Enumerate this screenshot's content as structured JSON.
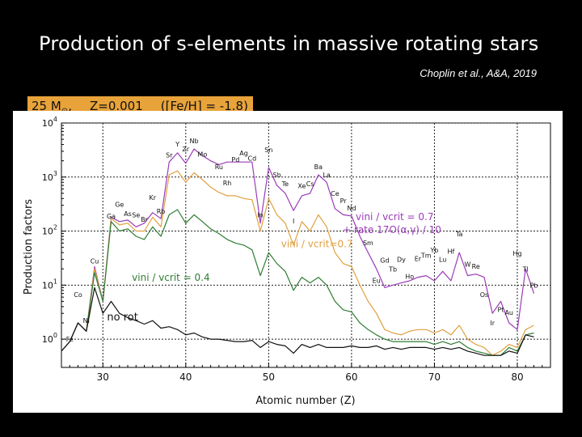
{
  "slide": {
    "title": "Production of s-elements in massive rotating stars",
    "citation": "Choplin et al., A&A, 2019",
    "badge": {
      "mass_prefix": "25 M",
      "sun_symbol": "⊙",
      "mass_suffix": ",",
      "metallicity": "Z=0.001",
      "fe_h": "([Fe/H] = -1.8)"
    }
  },
  "colors": {
    "purple": "#9b3cb8",
    "orange": "#e0a040",
    "green": "#2e7d32",
    "black": "#111111",
    "badge": "#e8a33a"
  },
  "chart_data": {
    "type": "line",
    "xlabel": "Atomic number (Z)",
    "ylabel": "Production factors",
    "xlim": [
      25,
      84
    ],
    "ylim": [
      0.3,
      10000
    ],
    "yscale": "log",
    "grid": true,
    "x_ticks": [
      30,
      40,
      50,
      60,
      70,
      80
    ],
    "y_ticks": [
      {
        "value": 1,
        "base": "10",
        "exp": "0"
      },
      {
        "value": 10,
        "base": "10",
        "exp": "1"
      },
      {
        "value": 100,
        "base": "10",
        "exp": "2"
      },
      {
        "value": 1000,
        "base": "10",
        "exp": "3"
      },
      {
        "value": 10000,
        "base": "10",
        "exp": "4"
      }
    ],
    "x": [
      25,
      26,
      27,
      28,
      29,
      30,
      31,
      32,
      33,
      34,
      35,
      36,
      37,
      38,
      39,
      40,
      41,
      42,
      43,
      44,
      45,
      46,
      47,
      48,
      49,
      50,
      51,
      52,
      53,
      54,
      55,
      56,
      57,
      58,
      59,
      60,
      61,
      62,
      63,
      64,
      65,
      66,
      67,
      68,
      69,
      70,
      71,
      72,
      73,
      74,
      75,
      76,
      77,
      78,
      79,
      80,
      81,
      82
    ],
    "series": [
      {
        "name": "vini / vcrit = 0.7 + rate 17O(α,γ) / 10",
        "color": "#9b3cb8",
        "values": [
          0.6,
          0.9,
          2.0,
          1.4,
          22,
          5,
          180,
          150,
          160,
          120,
          140,
          220,
          170,
          1900,
          2800,
          1800,
          3300,
          2500,
          2000,
          1700,
          1900,
          1900,
          1900,
          1900,
          140,
          1500,
          700,
          500,
          240,
          450,
          500,
          1100,
          800,
          260,
          200,
          190,
          80,
          40,
          20,
          9,
          10,
          11,
          12,
          14,
          15,
          12,
          18,
          12,
          40,
          15,
          16,
          14,
          3,
          5,
          2,
          1.5,
          20,
          7
        ]
      },
      {
        "name": "vini / vcrit=0.7",
        "color": "#e0a040",
        "values": [
          0.6,
          0.9,
          2.0,
          1.4,
          20,
          5,
          170,
          130,
          140,
          100,
          100,
          180,
          120,
          1100,
          1300,
          800,
          1200,
          900,
          650,
          520,
          450,
          450,
          400,
          380,
          100,
          400,
          200,
          140,
          55,
          150,
          100,
          200,
          120,
          40,
          25,
          22,
          10,
          5,
          3,
          1.5,
          1.3,
          1.2,
          1.4,
          1.5,
          1.5,
          1.3,
          1.5,
          1.2,
          1.8,
          1.0,
          0.8,
          0.7,
          0.5,
          0.6,
          0.8,
          0.7,
          1.5,
          1.8
        ]
      },
      {
        "name": "vini / vcrit = 0.4",
        "color": "#2e7d32",
        "values": [
          0.6,
          0.9,
          2.0,
          1.4,
          17,
          5,
          150,
          100,
          110,
          80,
          70,
          120,
          80,
          200,
          250,
          140,
          200,
          150,
          110,
          90,
          70,
          60,
          55,
          45,
          15,
          40,
          25,
          18,
          8,
          14,
          11,
          14,
          10,
          5,
          3.5,
          3.2,
          2.0,
          1.5,
          1.2,
          1.0,
          0.9,
          0.9,
          0.9,
          0.9,
          0.9,
          0.8,
          0.9,
          0.8,
          0.9,
          0.7,
          0.6,
          0.55,
          0.5,
          0.5,
          0.7,
          0.6,
          1.2,
          1.3
        ]
      },
      {
        "name": "no rot",
        "color": "#111111",
        "values": [
          0.6,
          0.9,
          2.0,
          1.4,
          9,
          3,
          5,
          3,
          2.5,
          2.2,
          1.9,
          2.2,
          1.6,
          1.7,
          1.5,
          1.2,
          1.3,
          1.1,
          1.0,
          1.0,
          0.95,
          0.9,
          0.9,
          0.95,
          0.7,
          0.9,
          0.8,
          0.75,
          0.55,
          0.8,
          0.7,
          0.8,
          0.7,
          0.7,
          0.7,
          0.75,
          0.7,
          0.7,
          0.75,
          0.65,
          0.7,
          0.65,
          0.7,
          0.7,
          0.7,
          0.65,
          0.7,
          0.65,
          0.7,
          0.6,
          0.55,
          0.5,
          0.5,
          0.5,
          0.6,
          0.55,
          1.2,
          1.1
        ]
      }
    ],
    "series_labels": [
      {
        "line1": "vini / vcrit = 0.7",
        "line2": "+ rate 17O(α,γ) / 10",
        "color": "#9b3cb8",
        "x": 60.5,
        "y": 160
      },
      {
        "line1": "vini / vcrit=0.7",
        "line2": "",
        "color": "#e0a040",
        "x": 51.5,
        "y": 50
      },
      {
        "line1": "vini / vcrit = 0.4",
        "line2": "",
        "color": "#2e7d32",
        "x": 33.5,
        "y": 12
      },
      {
        "line1": "no rot",
        "line2": "",
        "color": "#111111",
        "x": 30.5,
        "y": 2.2
      }
    ],
    "element_labels": [
      {
        "t": "Fe",
        "x": 26,
        "y": 0.9
      },
      {
        "t": "Co",
        "x": 27,
        "y": 6
      },
      {
        "t": "Ni",
        "x": 28,
        "y": 2.0
      },
      {
        "t": "Cu",
        "x": 29,
        "y": 25
      },
      {
        "t": "Ge",
        "x": 32,
        "y": 280
      },
      {
        "t": "Ga",
        "x": 31,
        "y": 170
      },
      {
        "t": "As",
        "x": 33,
        "y": 190
      },
      {
        "t": "Se",
        "x": 34,
        "y": 180
      },
      {
        "t": "Br",
        "x": 35,
        "y": 150
      },
      {
        "t": "Kr",
        "x": 36,
        "y": 380
      },
      {
        "t": "Rb",
        "x": 37,
        "y": 210
      },
      {
        "t": "Sr",
        "x": 38,
        "y": 2300
      },
      {
        "t": "Y",
        "x": 39,
        "y": 3700
      },
      {
        "t": "Zr",
        "x": 40,
        "y": 3000
      },
      {
        "t": "Nb",
        "x": 41,
        "y": 4200
      },
      {
        "t": "Mo",
        "x": 42,
        "y": 2400
      },
      {
        "t": "Ru",
        "x": 44,
        "y": 1400
      },
      {
        "t": "Rh",
        "x": 45,
        "y": 700
      },
      {
        "t": "Pd",
        "x": 46,
        "y": 1900
      },
      {
        "t": "Ag",
        "x": 47,
        "y": 2500
      },
      {
        "t": "Cd",
        "x": 48,
        "y": 2000
      },
      {
        "t": "In",
        "x": 49,
        "y": 180
      },
      {
        "t": "Sn",
        "x": 50,
        "y": 2900
      },
      {
        "t": "Sb",
        "x": 51,
        "y": 1000
      },
      {
        "t": "Te",
        "x": 52,
        "y": 680
      },
      {
        "t": "I",
        "x": 53,
        "y": 140
      },
      {
        "t": "Xe",
        "x": 54,
        "y": 620
      },
      {
        "t": "Cs",
        "x": 55,
        "y": 680
      },
      {
        "t": "Ba",
        "x": 56,
        "y": 1400
      },
      {
        "t": "La",
        "x": 57,
        "y": 1000
      },
      {
        "t": "Ce",
        "x": 58,
        "y": 450
      },
      {
        "t": "Pr",
        "x": 59,
        "y": 330
      },
      {
        "t": "Nd",
        "x": 60,
        "y": 240
      },
      {
        "t": "Sm",
        "x": 62,
        "y": 55
      },
      {
        "t": "Eu",
        "x": 63,
        "y": 11
      },
      {
        "t": "Gd",
        "x": 64,
        "y": 26
      },
      {
        "t": "Tb",
        "x": 65,
        "y": 18
      },
      {
        "t": "Dy",
        "x": 66,
        "y": 27
      },
      {
        "t": "Ho",
        "x": 67,
        "y": 13
      },
      {
        "t": "Er",
        "x": 68,
        "y": 28
      },
      {
        "t": "Tm",
        "x": 69,
        "y": 32
      },
      {
        "t": "Yb",
        "x": 70,
        "y": 40
      },
      {
        "t": "Lu",
        "x": 71,
        "y": 27
      },
      {
        "t": "Hf",
        "x": 72,
        "y": 38
      },
      {
        "t": "Ta",
        "x": 73,
        "y": 80
      },
      {
        "t": "W",
        "x": 74,
        "y": 22
      },
      {
        "t": "Re",
        "x": 75,
        "y": 20
      },
      {
        "t": "Os",
        "x": 76,
        "y": 6
      },
      {
        "t": "Ir",
        "x": 77,
        "y": 1.8
      },
      {
        "t": "Pt",
        "x": 78,
        "y": 3.2
      },
      {
        "t": "Au",
        "x": 79,
        "y": 2.8
      },
      {
        "t": "Hg",
        "x": 80,
        "y": 35
      },
      {
        "t": "Tl",
        "x": 81,
        "y": 18
      },
      {
        "t": "Pb",
        "x": 82,
        "y": 9
      }
    ]
  }
}
